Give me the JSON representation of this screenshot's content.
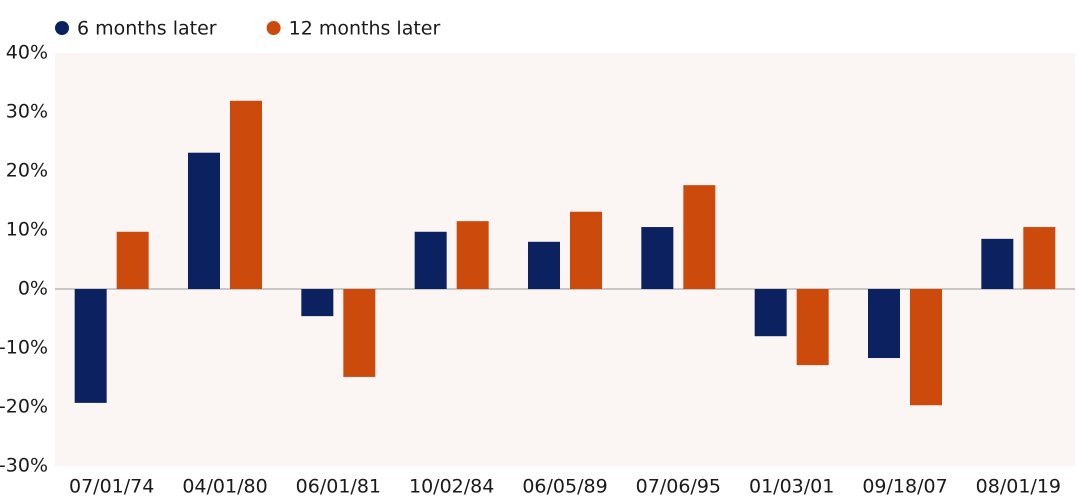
{
  "chart_data": {
    "type": "bar",
    "categories": [
      "07/01/74",
      "04/01/80",
      "06/01/81",
      "10/02/84",
      "06/05/89",
      "07/06/95",
      "01/03/01",
      "09/18/07",
      "08/01/19"
    ],
    "series": [
      {
        "name": "6 months later",
        "color": "#0b2160",
        "values": [
          -19.3,
          23.1,
          -4.6,
          9.7,
          8.0,
          10.5,
          -8.0,
          -11.7,
          8.5
        ]
      },
      {
        "name": "12 months later",
        "color": "#cc4a0c",
        "values": [
          9.7,
          31.9,
          -14.9,
          11.5,
          13.1,
          17.6,
          -12.9,
          -19.7,
          10.5
        ]
      }
    ],
    "ylim": [
      -30,
      40
    ],
    "yticks": [
      {
        "value": -30,
        "label": "-30%"
      },
      {
        "value": -20,
        "label": "-20%"
      },
      {
        "value": -10,
        "label": "-10%"
      },
      {
        "value": 0,
        "label": "0%"
      },
      {
        "value": 10,
        "label": "10%"
      },
      {
        "value": 20,
        "label": "20%"
      },
      {
        "value": 30,
        "label": "30%"
      },
      {
        "value": 40,
        "label": "40%"
      }
    ],
    "plot_background": "#fbf5f4"
  }
}
